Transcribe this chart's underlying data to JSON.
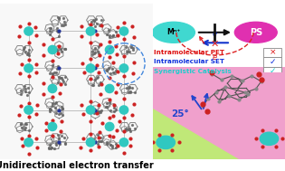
{
  "title": "Unidirectional electron transfer",
  "title_fontsize": 7.0,
  "title_fontweight": "bold",
  "bg_color": "#ffffff",
  "top_right": {
    "pink_bg": "#f0a0cc",
    "green_bg": "#b8e878",
    "angle_label": "25°",
    "angle_color": "#2244cc"
  },
  "mn_label": "Mⁿ⁺",
  "ps_label": "PS",
  "mn_color": "#40d8d0",
  "ps_color": "#e030b0",
  "ps_text_color": "#ffffff",
  "arrow_black": "#111111",
  "arrow_blue": "#1133cc",
  "arc_red": "#dd2222",
  "e_label": "e",
  "legend": [
    {
      "text": "Intramolecular PET",
      "color": "#dd1111",
      "sym": "×",
      "sym_color": "#dd1111"
    },
    {
      "text": "Intramolecular SET",
      "color": "#1133dd",
      "sym": "✓",
      "sym_color": "#1133dd"
    },
    {
      "text": "Synergistic Catalysis",
      "color": "#22cccc",
      "sym": "✓",
      "sym_color": "#22cccc"
    }
  ],
  "legend_fontsize": 5.2,
  "dashed_circle_color": "#4488dd",
  "connector_color": "#4488dd"
}
